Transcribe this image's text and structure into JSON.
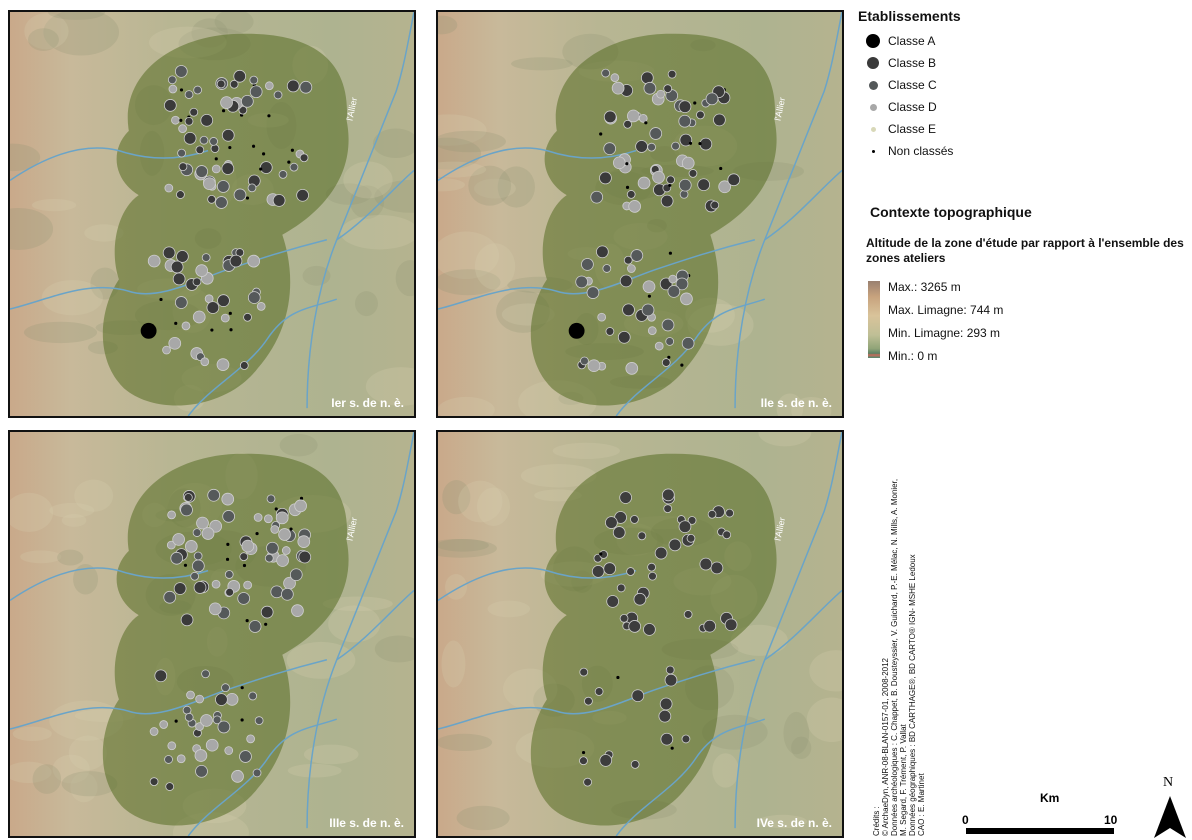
{
  "panels": [
    {
      "label": "Ier s. de n. è.",
      "river": "l'Allier"
    },
    {
      "label": "IIe s. de n. è.",
      "river": "l'Allier"
    },
    {
      "label": "IIIe s. de n. è.",
      "river": "l'Allier"
    },
    {
      "label": "IVe s. de n. è.",
      "river": "l'Allier"
    }
  ],
  "legend": {
    "title": "Etablissements",
    "classes": [
      {
        "label": "Classe A",
        "color": "#000000"
      },
      {
        "label": "Classe B",
        "color": "#3a3a3a"
      },
      {
        "label": "Classe C",
        "color": "#55595a"
      },
      {
        "label": "Classe D",
        "color": "#a8a8a8"
      },
      {
        "label": "Classe E",
        "color": "#d8d8b8"
      },
      {
        "label": "Non classés",
        "color": "#000000"
      }
    ]
  },
  "topo": {
    "title": "Contexte topographique",
    "subtitle": "Altitude de la zone d'étude par rapport à l'ensemble des zones ateliers",
    "ramp": [
      "Max.: 3265 m",
      "Max. Limagne: 744 m",
      "Min. Limagne: 293 m",
      "Min.: 0 m"
    ]
  },
  "credits": [
    "Crédits :",
    "© ArchaeDyn, ANR-08-BLAN-0157-01, 2008-2012",
    "Données archéologiques : C. Chappet, B. Dousteyssier, V. Guichard, P.-E. Mélac, N. Mills, A. Monier,",
    "M. Segard, F. Trément, P. Vallat",
    "Données géographiques : BD CARTHAGE®, BD CARTO® IGN- MSHE Ledoux",
    "CAO : E. Martinet"
  ],
  "scale": {
    "unit": "Km",
    "start": "0",
    "end": "10"
  },
  "north": "N"
}
